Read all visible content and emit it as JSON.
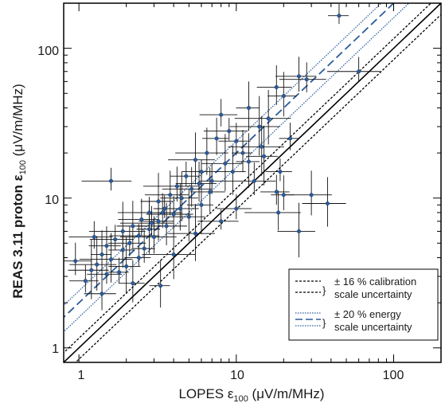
{
  "chart_data": {
    "type": "scatter",
    "x_scale": "log",
    "y_scale": "log",
    "xlim": [
      0.8,
      200
    ],
    "ylim": [
      0.8,
      200
    ],
    "x_ticks": [
      1,
      10,
      100
    ],
    "y_ticks": [
      1,
      10,
      100
    ],
    "x_tick_labels": [
      "1",
      "10",
      "100"
    ],
    "y_tick_labels": [
      "1",
      "10",
      "100"
    ],
    "xlabel": {
      "main": "LOPES ε",
      "sub": "100",
      "unit": " (μV/m/MHz)"
    },
    "ylabel": {
      "main": "REAS 3.11 proton ε",
      "sub": "100",
      "unit": " (μV/m/MHz)"
    },
    "grid": false,
    "legend_position": "bottom-right",
    "reference_lines": {
      "identity": {
        "slope": 1
      },
      "calibration_band": {
        "factor": 0.16
      },
      "fit_line": {
        "factor": 2.0
      },
      "energy_band": {
        "factor": 0.2
      }
    },
    "legend": {
      "calibration": {
        "symbol": "}",
        "line1": "± 16 % calibration",
        "line2": "scale uncertainty"
      },
      "energy": {
        "symbol": "}",
        "line1": "± 20 % energy",
        "line2": "scale uncertainty"
      }
    },
    "colors": {
      "points": "#2b5b9c",
      "fit": "#2b5b9c",
      "errorbars": "#111111",
      "identity": "#000000"
    },
    "points": [
      {
        "x": 45,
        "y": 165
      },
      {
        "x": 60,
        "y": 70
      },
      {
        "x": 28,
        "y": 62
      },
      {
        "x": 25,
        "y": 65
      },
      {
        "x": 18,
        "y": 55
      },
      {
        "x": 20,
        "y": 48
      },
      {
        "x": 12,
        "y": 40
      },
      {
        "x": 16,
        "y": 34
      },
      {
        "x": 14,
        "y": 30
      },
      {
        "x": 9,
        "y": 28
      },
      {
        "x": 8,
        "y": 36
      },
      {
        "x": 10,
        "y": 24
      },
      {
        "x": 7.5,
        "y": 25
      },
      {
        "x": 11,
        "y": 20
      },
      {
        "x": 6.5,
        "y": 20
      },
      {
        "x": 5.5,
        "y": 18
      },
      {
        "x": 8.5,
        "y": 17
      },
      {
        "x": 6,
        "y": 15
      },
      {
        "x": 4.8,
        "y": 14
      },
      {
        "x": 7,
        "y": 13
      },
      {
        "x": 4.2,
        "y": 12
      },
      {
        "x": 5.2,
        "y": 11.5
      },
      {
        "x": 3.8,
        "y": 10.5
      },
      {
        "x": 4.5,
        "y": 10
      },
      {
        "x": 3.2,
        "y": 9.5
      },
      {
        "x": 6,
        "y": 9
      },
      {
        "x": 3.5,
        "y": 8.5
      },
      {
        "x": 2.8,
        "y": 8
      },
      {
        "x": 4,
        "y": 7.8
      },
      {
        "x": 2.5,
        "y": 7.2
      },
      {
        "x": 3.2,
        "y": 7
      },
      {
        "x": 2.2,
        "y": 6.5
      },
      {
        "x": 2.8,
        "y": 6.2
      },
      {
        "x": 1.9,
        "y": 6
      },
      {
        "x": 2.4,
        "y": 5.6
      },
      {
        "x": 1.7,
        "y": 5.3
      },
      {
        "x": 2.1,
        "y": 5
      },
      {
        "x": 1.5,
        "y": 4.8
      },
      {
        "x": 1.9,
        "y": 4.5
      },
      {
        "x": 1.4,
        "y": 4.2
      },
      {
        "x": 1.6,
        "y": 3.9
      },
      {
        "x": 1.3,
        "y": 3.6
      },
      {
        "x": 1.2,
        "y": 3.3
      },
      {
        "x": 1.5,
        "y": 3.1
      },
      {
        "x": 1.1,
        "y": 2.8
      },
      {
        "x": 2.6,
        "y": 4.6
      },
      {
        "x": 3.0,
        "y": 5.5
      },
      {
        "x": 3.6,
        "y": 6.5
      },
      {
        "x": 4.4,
        "y": 8.5
      },
      {
        "x": 5.0,
        "y": 7.5
      },
      {
        "x": 2.0,
        "y": 3.5
      },
      {
        "x": 2.4,
        "y": 4.0
      },
      {
        "x": 1.8,
        "y": 3.2
      },
      {
        "x": 2.9,
        "y": 6.8
      },
      {
        "x": 3.4,
        "y": 8.0
      },
      {
        "x": 5.8,
        "y": 12.5
      },
      {
        "x": 6.8,
        "y": 11.0
      },
      {
        "x": 9.5,
        "y": 15.0
      },
      {
        "x": 12.0,
        "y": 17.5
      },
      {
        "x": 14.5,
        "y": 22.0
      },
      {
        "x": 1.6,
        "y": 13.0
      },
      {
        "x": 1.25,
        "y": 5.5
      },
      {
        "x": 0.95,
        "y": 3.8
      },
      {
        "x": 1.4,
        "y": 2.3
      },
      {
        "x": 2.2,
        "y": 2.7
      },
      {
        "x": 3.3,
        "y": 2.6
      },
      {
        "x": 4.0,
        "y": 4.2
      },
      {
        "x": 5.5,
        "y": 5.8
      },
      {
        "x": 8.0,
        "y": 7.0
      },
      {
        "x": 10.0,
        "y": 8.5
      },
      {
        "x": 18.0,
        "y": 11.0
      },
      {
        "x": 20.0,
        "y": 10.5
      },
      {
        "x": 18.5,
        "y": 8.0
      },
      {
        "x": 30.0,
        "y": 10.5
      },
      {
        "x": 38.0,
        "y": 9.2
      },
      {
        "x": 25.0,
        "y": 6.0
      },
      {
        "x": 15.0,
        "y": 19.0
      },
      {
        "x": 19.0,
        "y": 15.0
      },
      {
        "x": 22.0,
        "y": 25.0
      },
      {
        "x": 13.0,
        "y": 13.0
      }
    ]
  }
}
